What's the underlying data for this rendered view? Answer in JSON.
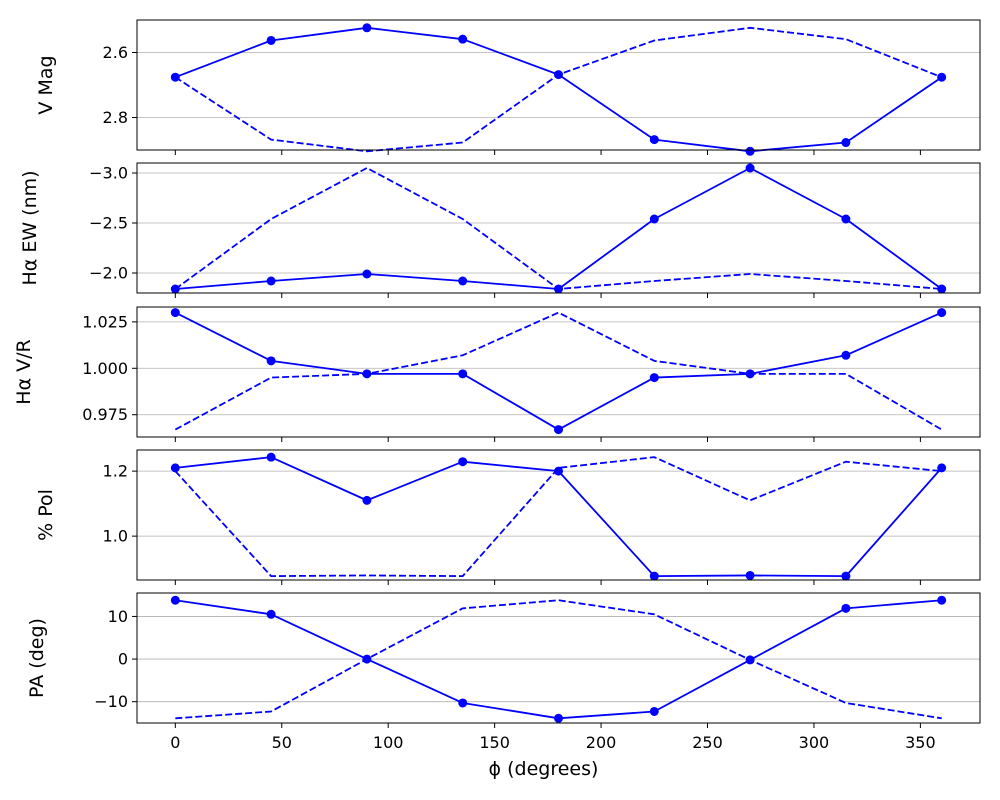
{
  "chart_data": {
    "type": "line",
    "shared_x": {
      "values": [
        0,
        45,
        90,
        135,
        180,
        225,
        270,
        315,
        360
      ],
      "xlim": [
        -18,
        378
      ],
      "ticks": [
        0,
        50,
        100,
        150,
        200,
        250,
        300,
        350
      ],
      "tick_labels": [
        "0",
        "50",
        "100",
        "150",
        "200",
        "250",
        "300",
        "350"
      ],
      "xlabel": "ϕ (degrees)"
    },
    "line_color": "#0000ff",
    "grid": "horizontal",
    "panels": [
      {
        "ylabel": "V Mag",
        "ylim": [
          2.9,
          2.5
        ],
        "inverted": true,
        "yticks": [
          2.6,
          2.8
        ],
        "ytick_labels": [
          "2.6",
          "2.8"
        ],
        "series": [
          {
            "style": "solid-markers",
            "values": [
              2.676,
              2.563,
              2.524,
              2.559,
              2.668,
              2.868,
              2.904,
              2.877,
              2.676
            ]
          },
          {
            "style": "dashed",
            "values": [
              2.676,
              2.868,
              2.904,
              2.877,
              2.668,
              2.563,
              2.524,
              2.559,
              2.676
            ]
          }
        ]
      },
      {
        "ylabel": "Hα EW (nm)",
        "ylim": [
          -1.8,
          -3.1
        ],
        "inverted": true,
        "yticks": [
          -3.0,
          -2.5,
          -2.0
        ],
        "ytick_labels": [
          "−3.0",
          "−2.5",
          "−2.0"
        ],
        "series": [
          {
            "style": "solid-markers",
            "values": [
              -1.84,
              -1.92,
              -1.99,
              -1.92,
              -1.84,
              -2.54,
              -3.05,
              -2.54,
              -1.84
            ]
          },
          {
            "style": "dashed",
            "values": [
              -1.84,
              -2.54,
              -3.05,
              -2.54,
              -1.84,
              -1.92,
              -1.99,
              -1.92,
              -1.84
            ]
          }
        ]
      },
      {
        "ylabel": "Hα V/R",
        "ylim": [
          0.963,
          1.033
        ],
        "inverted": false,
        "yticks": [
          0.975,
          1.0,
          1.025
        ],
        "ytick_labels": [
          "0.975",
          "1.000",
          "1.025"
        ],
        "series": [
          {
            "style": "solid-markers",
            "values": [
              1.03,
              1.004,
              0.997,
              0.997,
              0.967,
              0.995,
              0.997,
              1.007,
              1.03
            ]
          },
          {
            "style": "dashed",
            "values": [
              0.967,
              0.995,
              0.997,
              1.007,
              1.03,
              1.004,
              0.997,
              0.997,
              0.967
            ]
          }
        ]
      },
      {
        "ylabel": "% Pol",
        "ylim": [
          0.865,
          1.265
        ],
        "inverted": false,
        "yticks": [
          1.0,
          1.2
        ],
        "ytick_labels": [
          "1.0",
          "1.2"
        ],
        "series": [
          {
            "style": "solid-markers",
            "values": [
              1.21,
              1.243,
              1.11,
              1.229,
              1.2,
              0.877,
              0.879,
              0.877,
              1.21
            ]
          },
          {
            "style": "dashed",
            "values": [
              1.2,
              0.877,
              0.879,
              0.877,
              1.21,
              1.243,
              1.11,
              1.229,
              1.2
            ]
          }
        ]
      },
      {
        "ylabel": "PA (deg)",
        "ylim": [
          -15,
          15.5
        ],
        "inverted": false,
        "yticks": [
          -10,
          0,
          10
        ],
        "ytick_labels": [
          "−10",
          "0",
          "10"
        ],
        "series": [
          {
            "style": "solid-markers",
            "values": [
              13.8,
              10.5,
              0,
              -10.3,
              -13.9,
              -12.3,
              -0.2,
              11.9,
              13.8
            ]
          },
          {
            "style": "dashed",
            "values": [
              -13.9,
              -12.3,
              0,
              11.9,
              13.8,
              10.5,
              -0.2,
              -10.3,
              -13.9
            ]
          }
        ]
      }
    ]
  }
}
